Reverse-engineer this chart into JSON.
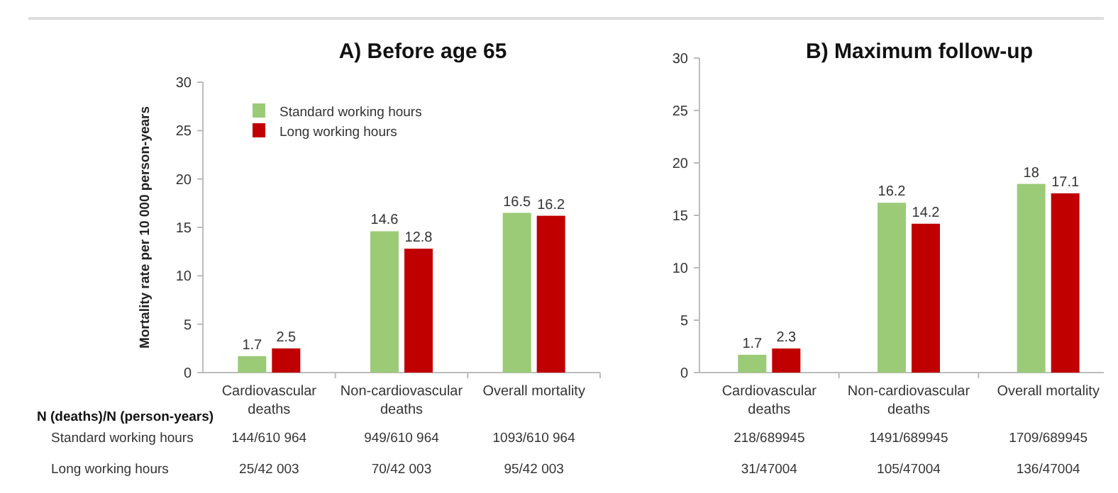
{
  "chart_data": [
    {
      "type": "bar",
      "title": "A) Before age 65",
      "ylabel": "Mortality rate per 10 000 person-years",
      "categories": [
        "Cardiovascular deaths",
        "Non-cardiovascular deaths",
        "Overall mortality"
      ],
      "series": [
        {
          "name": "Standard working hours",
          "color": "#9bcb77",
          "values": [
            1.7,
            14.6,
            16.5
          ]
        },
        {
          "name": "Long working hours",
          "color": "#c00000",
          "values": [
            2.5,
            12.8,
            16.2
          ]
        }
      ],
      "ylim": [
        0,
        30
      ],
      "yticks": [
        0,
        5,
        10,
        15,
        20,
        25,
        30
      ],
      "grid": false,
      "legend": "top left",
      "data_labels": true,
      "annotations": [
        "N (deaths)/N (person-years)",
        "Standard working hours",
        "Long working hours",
        "144/610 964",
        "949/610 964",
        "1093/610 964",
        "25/42 003",
        "70/42 003",
        "95/42 003"
      ]
    },
    {
      "type": "bar",
      "title": "B) Maximum follow-up",
      "categories": [
        "Cardiovascular deaths",
        "Non-cardiovascular deaths",
        "Overall mortality"
      ],
      "series": [
        {
          "color": "#9bcb77",
          "values": [
            1.7,
            16.2,
            18
          ]
        },
        {
          "color": "#c00000",
          "values": [
            2.3,
            14.2,
            17.1
          ]
        }
      ],
      "ylim": [
        0,
        30
      ],
      "yticks": [
        0,
        5,
        10,
        15,
        20,
        25,
        30
      ],
      "grid": false,
      "legend": false,
      "data_labels": true,
      "annotations": [
        "218/689945",
        "1491/689945",
        "1709/689945",
        "31/47004",
        "105/47004",
        "136/47004"
      ]
    }
  ]
}
